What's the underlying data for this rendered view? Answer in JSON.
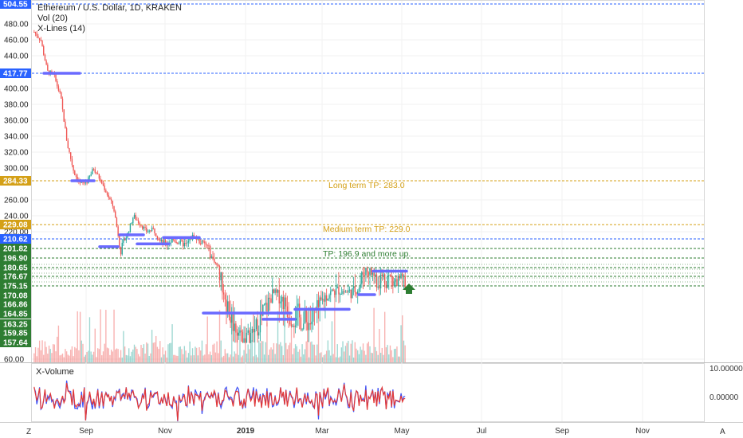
{
  "legend": {
    "title": "Ethereum / U.S. Dollar, 1D, KRAKEN",
    "vol": "Vol (20)",
    "xlines": "X-Lines (14)"
  },
  "colors": {
    "up": "#26a69a",
    "down": "#ef5350",
    "blue_line": "#2962ff",
    "gold_line": "#d4a017",
    "green_line": "#2e7d32",
    "seg_purple": "#6a6aff",
    "arrow": "#2e7d32",
    "osc_blue": "#3f51f5",
    "osc_red": "#e53935"
  },
  "price_axis": {
    "ticks": [
      {
        "v": 480,
        "t": "480.00"
      },
      {
        "v": 460,
        "t": "460.00"
      },
      {
        "v": 440,
        "t": "440.00"
      },
      {
        "v": 400,
        "t": "400.00"
      },
      {
        "v": 380,
        "t": "380.00"
      },
      {
        "v": 360,
        "t": "360.00"
      },
      {
        "v": 340,
        "t": "340.00"
      },
      {
        "v": 320,
        "t": "320.00"
      },
      {
        "v": 300,
        "t": "300.00"
      },
      {
        "v": 260,
        "t": "260.00"
      },
      {
        "v": 240,
        "t": "240.00"
      },
      {
        "v": 220,
        "t": "220.00"
      },
      {
        "v": 60,
        "t": "60.00"
      }
    ],
    "badges": [
      {
        "v": 504.55,
        "t": "504.55",
        "color": "#2962ff"
      },
      {
        "v": 417.77,
        "t": "417.77",
        "color": "#2962ff"
      },
      {
        "v": 284.33,
        "t": "284.33",
        "color": "#d4a017"
      },
      {
        "v": 229.08,
        "t": "229.08",
        "color": "#d4a017"
      },
      {
        "v": 210.62,
        "t": "210.62",
        "color": "#2962ff"
      },
      {
        "v": 201.82,
        "t": "201.82",
        "color": "#2e7d32"
      },
      {
        "v": 196.9,
        "t": "196.90",
        "color": "#2e7d32"
      },
      {
        "v": 180.65,
        "t": "180.65",
        "color": "#2e7d32"
      },
      {
        "v": 176.67,
        "t": "176.67",
        "color": "#2e7d32"
      },
      {
        "v": 175.15,
        "t": "175.15",
        "color": "#2e7d32"
      },
      {
        "v": 170.08,
        "t": "170.08",
        "color": "#2e7d32"
      },
      {
        "v": 166.86,
        "t": "166.86",
        "color": "#2e7d32"
      },
      {
        "v": 164.85,
        "t": "164.85",
        "color": "#2e7d32"
      },
      {
        "v": 163.25,
        "t": "163.25",
        "color": "#2e7d32"
      },
      {
        "v": 159.85,
        "t": "159.85",
        "color": "#2e7d32"
      },
      {
        "v": 157.64,
        "t": "157.64",
        "color": "#2e7d32"
      }
    ]
  },
  "annotations": [
    {
      "text": "Long term TP: 283.0",
      "color": "#d4a017"
    },
    {
      "text": "Medium term TP: 229.0",
      "color": "#d4a017"
    },
    {
      "text": "TP: 196.9 and more up.",
      "color": "#2e7d32"
    }
  ],
  "time_axis": {
    "labels": [
      "Sep",
      "Nov",
      "2019",
      "Mar",
      "May",
      "Jul",
      "Sep",
      "Nov"
    ]
  },
  "corner": {
    "left": "Z",
    "right": "A"
  },
  "xvolume": {
    "label": "X-Volume",
    "ticks": [
      "10.00000",
      "0.00000"
    ]
  },
  "chart_data": {
    "type": "candlestick",
    "title": "Ethereum / U.S. Dollar, 1D, KRAKEN",
    "xlabel": "",
    "ylabel": "",
    "price_series_approx": [
      {
        "date": "2018-08",
        "close": 470
      },
      {
        "date": "2018-08-mid",
        "close": 400
      },
      {
        "date": "2018-09",
        "close": 285
      },
      {
        "date": "2018-09-mid",
        "close": 220
      },
      {
        "date": "2018-10",
        "close": 225
      },
      {
        "date": "2018-10-mid",
        "close": 205
      },
      {
        "date": "2018-11",
        "close": 210
      },
      {
        "date": "2018-11-mid",
        "close": 175
      },
      {
        "date": "2018-12",
        "close": 160
      },
      {
        "date": "2018-12-mid",
        "close": 158
      },
      {
        "date": "2019-01",
        "close": 163
      },
      {
        "date": "2019-01-mid",
        "close": 168
      },
      {
        "date": "2019-02",
        "close": 163
      },
      {
        "date": "2019-02-mid",
        "close": 164
      },
      {
        "date": "2019-03",
        "close": 168
      },
      {
        "date": "2019-03-mid",
        "close": 170
      },
      {
        "date": "2019-04",
        "close": 178
      },
      {
        "date": "2019-04-mid",
        "close": 177
      },
      {
        "date": "2019-05",
        "close": 176
      }
    ],
    "horizontal_levels": [
      504.55,
      417.77,
      284.33,
      229.08,
      210.62,
      201.82,
      196.9,
      180.65,
      176.67,
      175.15
    ],
    "legend": [
      "Vol (20)",
      "X-Lines (14)"
    ],
    "secondary": {
      "name": "X-Volume",
      "ylim": [
        -5,
        10
      ]
    }
  }
}
